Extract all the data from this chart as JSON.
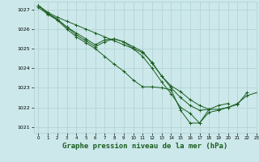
{
  "background_color": "#cce8ea",
  "grid_color": "#b0d0d0",
  "line_color": "#1a5e20",
  "xlabel": "Graphe pression niveau de la mer (hPa)",
  "xlabel_fontsize": 6.5,
  "ylim": [
    1020.7,
    1027.4
  ],
  "xlim": [
    -0.5,
    23
  ],
  "yticks": [
    1021,
    1022,
    1023,
    1024,
    1025,
    1026,
    1027
  ],
  "xticks": [
    0,
    1,
    2,
    3,
    4,
    5,
    6,
    7,
    8,
    9,
    10,
    11,
    12,
    13,
    14,
    15,
    16,
    17,
    18,
    19,
    20,
    21,
    22,
    23
  ],
  "series": [
    [
      1027.2,
      1026.85,
      1026.6,
      1026.4,
      1026.2,
      1026.0,
      1025.8,
      1025.6,
      1025.4,
      1025.2,
      1025.0,
      1024.8,
      1024.3,
      1023.6,
      1023.1,
      1022.8,
      1022.4,
      1022.1,
      1021.9,
      1021.9,
      1022.0,
      1022.2,
      1022.6,
      1022.75
    ],
    [
      1027.2,
      1026.8,
      1026.5,
      1026.1,
      1025.8,
      1025.5,
      1025.2,
      1025.45,
      1025.5,
      1025.35,
      1025.1,
      1024.85,
      1024.25,
      1023.6,
      1023.0,
      1022.5,
      1022.1,
      1021.85,
      1021.9,
      1022.1,
      1022.2,
      null,
      null,
      null
    ],
    [
      1027.2,
      1026.8,
      1026.5,
      1026.1,
      1025.7,
      1025.4,
      1025.1,
      1025.35,
      1025.5,
      1025.35,
      1025.0,
      1024.6,
      1024.0,
      1023.3,
      1022.7,
      1022.0,
      1021.7,
      1021.2,
      1021.9,
      null,
      null,
      null,
      null,
      null
    ],
    [
      1027.1,
      1026.75,
      1026.45,
      1026.0,
      1025.6,
      1025.3,
      1025.0,
      1024.6,
      1024.2,
      1023.85,
      1023.4,
      1023.05,
      1023.05,
      1023.0,
      1022.9,
      1021.85,
      1021.2,
      1021.2,
      1021.75,
      1021.85,
      1022.0,
      1022.15,
      1022.75,
      null
    ]
  ]
}
